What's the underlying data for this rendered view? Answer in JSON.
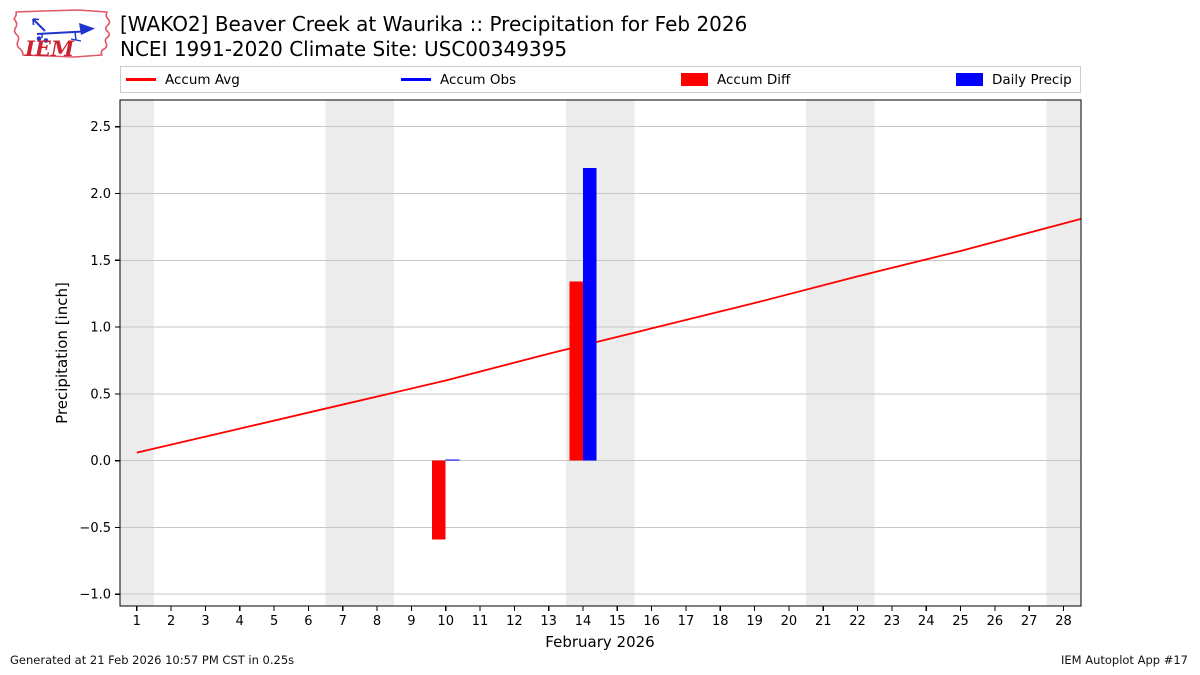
{
  "header": {
    "title_line1": "[WAKO2] Beaver Creek at Waurika :: Precipitation for Feb 2026",
    "title_line2": "NCEI 1991-2020 Climate Site: USC00349395",
    "logo_text": "IEM"
  },
  "legend": {
    "items": [
      {
        "label": "Accum Avg",
        "swatch": "line",
        "color": "#ff0000"
      },
      {
        "label": "Accum Obs",
        "swatch": "line",
        "color": "#0000ff"
      },
      {
        "label": "Accum Diff",
        "swatch": "rect",
        "color": "#ff0000"
      },
      {
        "label": "Daily Precip",
        "swatch": "rect",
        "color": "#0000ff"
      }
    ]
  },
  "footer": {
    "left": "Generated at 21 Feb 2026 10:57 PM CST in 0.25s",
    "right": "IEM Autoplot App #17"
  },
  "colors": {
    "band": "#ececec",
    "grid": "#c6c6c6",
    "spine": "#000000",
    "red": "#ff0000",
    "blue": "#0000ff"
  },
  "chart_data": {
    "type": "bar+line",
    "title": "[WAKO2] Beaver Creek at Waurika :: Precipitation for Feb 2026",
    "subtitle": "NCEI 1991-2020 Climate Site: USC00349395",
    "xlabel": "February 2026",
    "ylabel": "Precipitation [inch]",
    "xlim": [
      0.51,
      28.51
    ],
    "ylim": [
      -1.088,
      2.7
    ],
    "grid": true,
    "legend_position": "top",
    "x_ticks": [
      1,
      2,
      3,
      4,
      5,
      6,
      7,
      8,
      9,
      10,
      11,
      12,
      13,
      14,
      15,
      16,
      17,
      18,
      19,
      20,
      21,
      22,
      23,
      24,
      25,
      26,
      27,
      28
    ],
    "y_ticks": [
      {
        "v": -1.0,
        "label": "−1.0"
      },
      {
        "v": -0.5,
        "label": "−0.5"
      },
      {
        "v": 0.0,
        "label": "0.0"
      },
      {
        "v": 0.5,
        "label": "0.5"
      },
      {
        "v": 1.0,
        "label": "1.0"
      },
      {
        "v": 1.5,
        "label": "1.5"
      },
      {
        "v": 2.0,
        "label": "2.0"
      },
      {
        "v": 2.5,
        "label": "2.5"
      }
    ],
    "weekend_shaded_days": [
      1,
      7,
      8,
      14,
      15,
      21,
      22,
      28
    ],
    "series": [
      {
        "name": "Accum Avg",
        "type": "line",
        "color": "#ff0000",
        "line_width": 1.8,
        "points": [
          [
            1,
            0.06
          ],
          [
            4,
            0.24
          ],
          [
            7,
            0.42
          ],
          [
            10,
            0.6
          ],
          [
            13,
            0.8
          ],
          [
            16,
            0.99
          ],
          [
            19,
            1.18
          ],
          [
            22,
            1.38
          ],
          [
            25,
            1.57
          ],
          [
            28.51,
            1.81
          ]
        ]
      },
      {
        "name": "Accum Obs",
        "type": "line",
        "color": "#0000ff",
        "line_width": 1.8,
        "points": []
      },
      {
        "name": "Accum Diff",
        "type": "bar",
        "color": "#ff0000",
        "x_offset": -0.2,
        "bar_width": 0.4,
        "points": [
          [
            10,
            -0.59
          ],
          [
            14,
            1.34
          ]
        ]
      },
      {
        "name": "Daily Precip",
        "type": "bar",
        "color": "#0000ff",
        "x_offset": 0.2,
        "bar_width": 0.4,
        "points": [
          [
            10,
            0.01
          ],
          [
            14,
            2.19
          ]
        ]
      }
    ]
  }
}
